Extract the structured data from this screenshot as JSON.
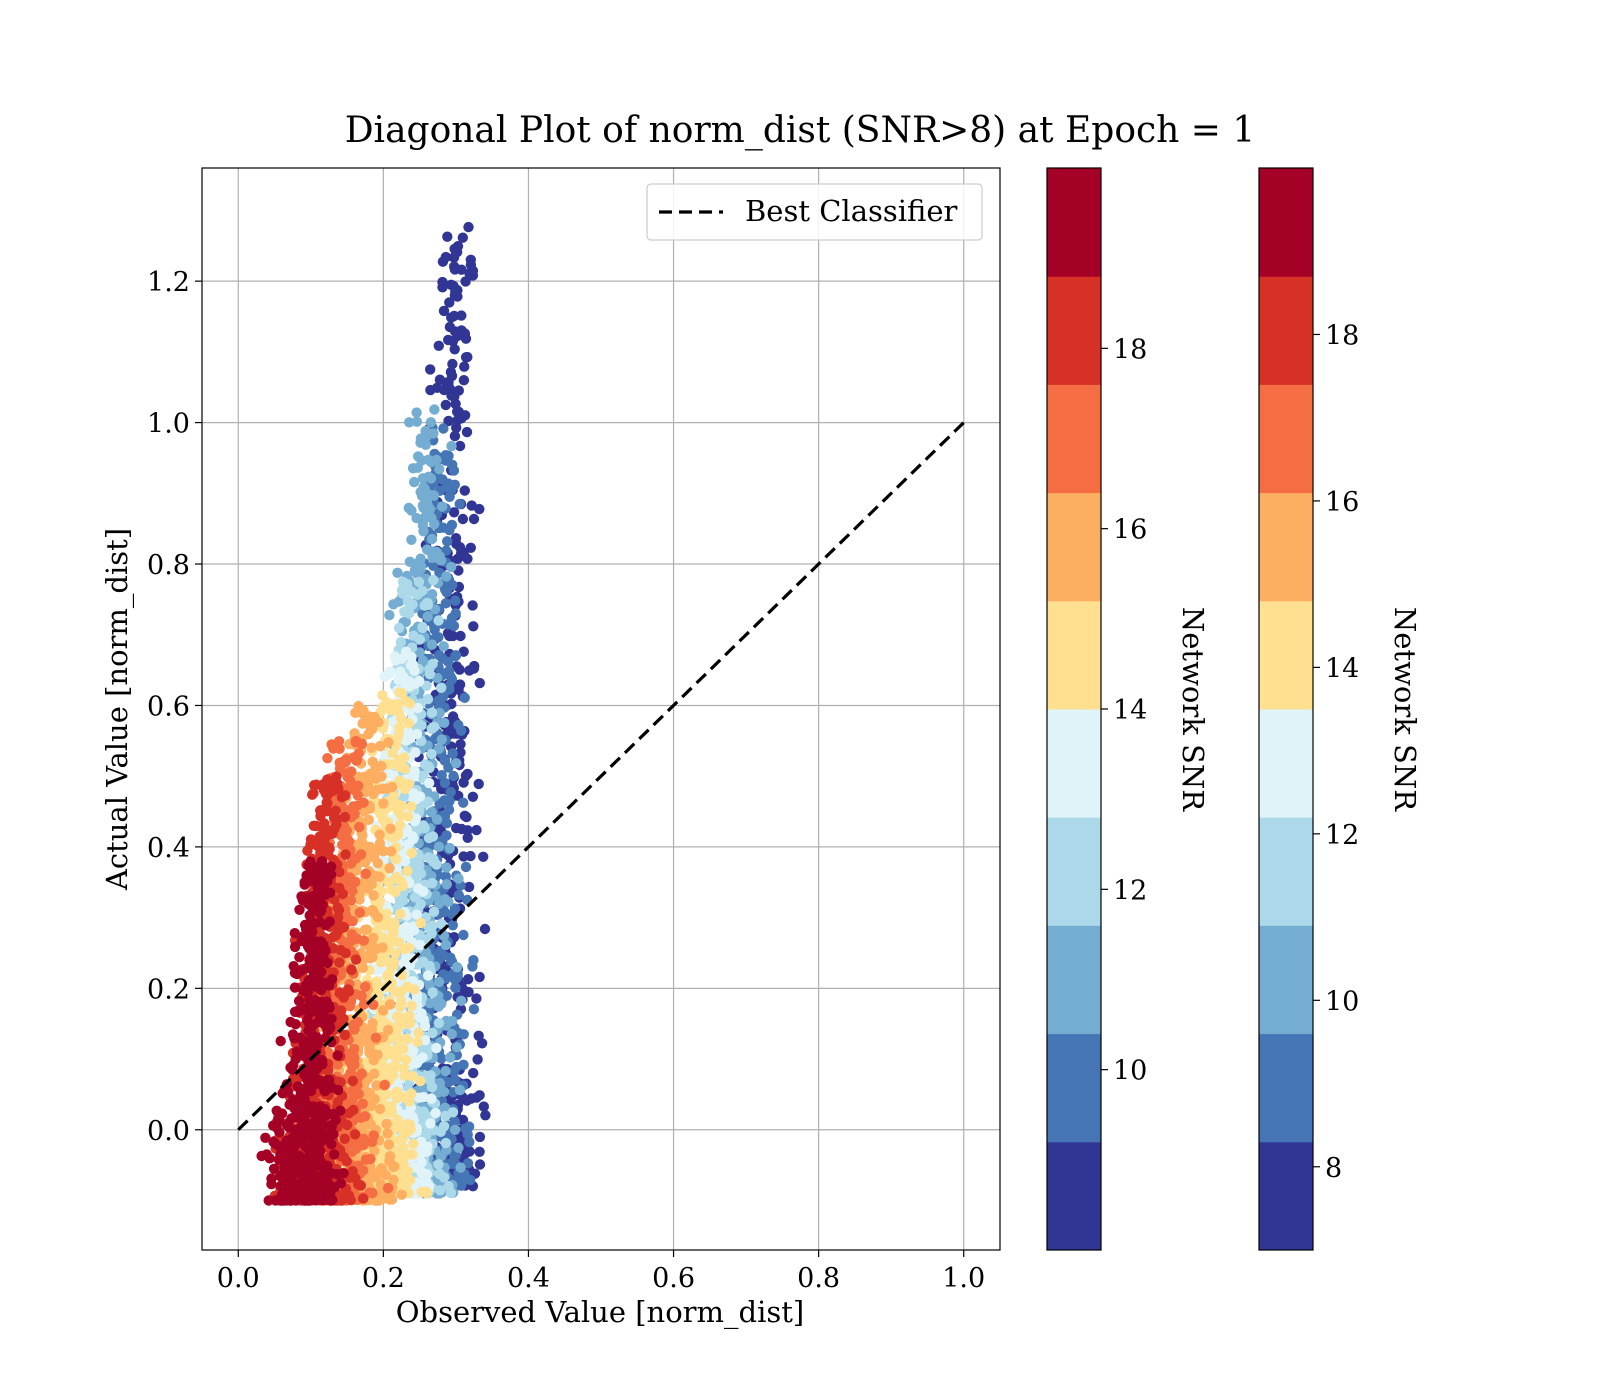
{
  "chart_data": {
    "type": "scatter",
    "title": "Diagonal Plot of norm_dist (SNR>8) at Epoch = 1",
    "xlabel": "Observed Value [norm_dist]",
    "ylabel": "Actual Value [norm_dist]",
    "xlim": [
      -0.05,
      1.05
    ],
    "ylim": [
      -0.17,
      1.36
    ],
    "x_ticks": [
      0.0,
      0.2,
      0.4,
      0.6,
      0.8,
      1.0
    ],
    "x_tick_labels": [
      "0.0",
      "0.2",
      "0.4",
      "0.6",
      "0.8",
      "1.0"
    ],
    "y_ticks": [
      0.0,
      0.2,
      0.4,
      0.6,
      0.8,
      1.0,
      1.2
    ],
    "y_tick_labels": [
      "0.0",
      "0.2",
      "0.4",
      "0.6",
      "0.8",
      "1.0",
      "1.2"
    ],
    "grid": true,
    "legend": {
      "placement": "top-right",
      "entries": [
        {
          "label": "Best Classifier",
          "style": "dashed",
          "color": "#000000"
        }
      ]
    },
    "reference_line": {
      "name": "Best Classifier",
      "x": [
        0.0,
        1.0
      ],
      "y": [
        0.0,
        1.0
      ]
    },
    "scatter_description_bands": [
      {
        "snr": 8.5,
        "color": "#313695",
        "x_range": [
          0.2,
          0.36
        ],
        "y_range": [
          -0.08,
          1.29
        ]
      },
      {
        "snr": 9.5,
        "color": "#4575b4",
        "x_range": [
          0.18,
          0.34
        ],
        "y_range": [
          -0.08,
          1.0
        ]
      },
      {
        "snr": 10.5,
        "color": "#74add1",
        "x_range": [
          0.15,
          0.33
        ],
        "y_range": [
          -0.09,
          1.02
        ]
      },
      {
        "snr": 11.5,
        "color": "#abd9e9",
        "x_range": [
          0.14,
          0.31
        ],
        "y_range": [
          -0.09,
          0.78
        ]
      },
      {
        "snr": 12.5,
        "color": "#e0f3f8",
        "x_range": [
          0.13,
          0.29
        ],
        "y_range": [
          -0.09,
          0.68
        ]
      },
      {
        "snr": 13.5,
        "color": "#fee090",
        "x_range": [
          0.12,
          0.27
        ],
        "y_range": [
          -0.09,
          0.62
        ]
      },
      {
        "snr": 14.5,
        "color": "#fdae61",
        "x_range": [
          0.07,
          0.24
        ],
        "y_range": [
          -0.1,
          0.6
        ]
      },
      {
        "snr": 15.5,
        "color": "#f46d43",
        "x_range": [
          0.05,
          0.21
        ],
        "y_range": [
          -0.1,
          0.55
        ]
      },
      {
        "snr": 16.5,
        "color": "#d73027",
        "x_range": [
          0.03,
          0.18
        ],
        "y_range": [
          -0.1,
          0.5
        ]
      },
      {
        "snr": 17.5,
        "color": "#a50026",
        "x_range": [
          0.02,
          0.16
        ],
        "y_range": [
          -0.1,
          0.38
        ]
      }
    ],
    "colorbars": [
      {
        "label": "Network SNR",
        "colors": [
          "#313695",
          "#4575b4",
          "#74add1",
          "#abd9e9",
          "#e0f3f8",
          "#fee090",
          "#fdae61",
          "#f46d43",
          "#d73027",
          "#a50026"
        ],
        "range": [
          8.0,
          20.0
        ],
        "ticks": [
          10,
          12,
          14,
          16,
          18
        ],
        "tick_labels": [
          "10",
          "12",
          "14",
          "16",
          "18"
        ]
      },
      {
        "label": "Network SNR",
        "colors": [
          "#313695",
          "#4575b4",
          "#74add1",
          "#abd9e9",
          "#e0f3f8",
          "#fee090",
          "#fdae61",
          "#f46d43",
          "#d73027",
          "#a50026"
        ],
        "range": [
          7.0,
          20.0
        ],
        "ticks": [
          8,
          10,
          12,
          14,
          16,
          18
        ],
        "tick_labels": [
          "8",
          "10",
          "12",
          "14",
          "16",
          "18"
        ]
      }
    ]
  }
}
